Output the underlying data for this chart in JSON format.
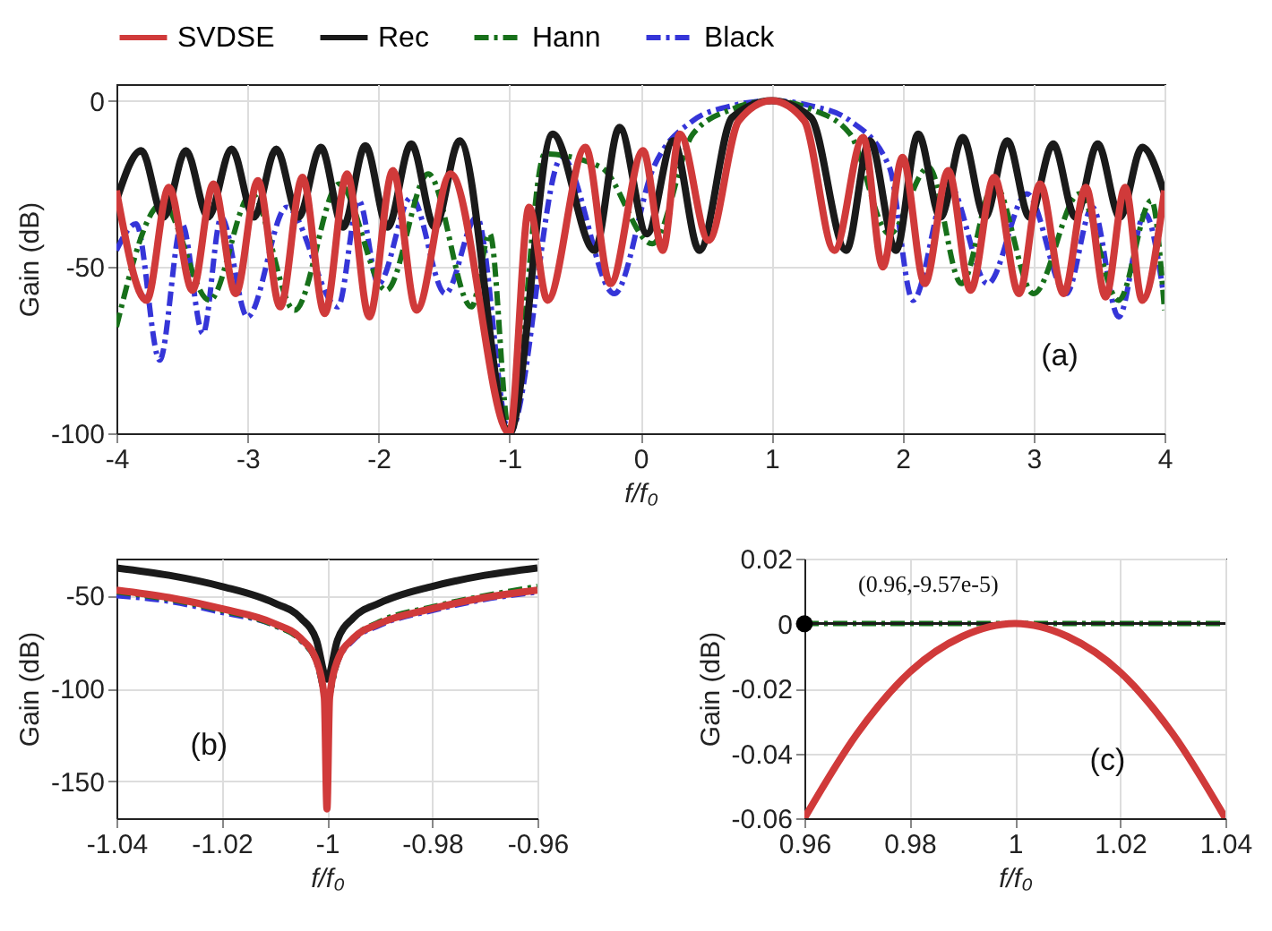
{
  "chart_data": [
    {
      "type": "line",
      "xlabel": "f/f₀",
      "ylabel": "Gain (dB)",
      "xlim": [
        -4,
        4
      ],
      "ylim": [
        -100,
        5
      ],
      "xticks": [
        -4,
        -3,
        -2,
        -1,
        0,
        1,
        2,
        3,
        4
      ],
      "yticks": [
        0,
        -50,
        -100
      ],
      "grid": true,
      "legend": "top",
      "annotations": [
        "(a)"
      ],
      "series": [
        {
          "name": "SVDSE",
          "color": "#d03a3a",
          "line_style": "solid",
          "x": [
            -4,
            -3.77,
            -3.6,
            -3.42,
            -3.26,
            -3.09,
            -2.92,
            -2.75,
            -2.58,
            -2.41,
            -2.24,
            -2.07,
            -1.89,
            -1.71,
            -1.45,
            -1.0,
            -0.85,
            -0.71,
            -0.42,
            -0.23,
            0.02,
            0.17,
            0.3,
            0.52,
            0.75,
            1.0,
            1.25,
            1.48,
            1.7,
            1.85,
            2.0,
            2.17,
            2.35,
            2.52,
            2.7,
            2.89,
            3.05,
            3.23,
            3.4,
            3.55,
            3.7,
            3.83,
            4
          ],
          "values": [
            -27,
            -60,
            -26,
            -57,
            -25,
            -58,
            -24,
            -62,
            -23,
            -64,
            -22,
            -65,
            -21,
            -63,
            -22,
            -100,
            -32,
            -60,
            -14,
            -55,
            -15,
            -45,
            -10,
            -42,
            -6,
            0,
            -6,
            -45,
            -11,
            -50,
            -17,
            -55,
            -21,
            -57,
            -23,
            -58,
            -25,
            -58,
            -26,
            -59,
            -26,
            -60,
            -27
          ]
        },
        {
          "name": "Rec",
          "color": "#1a1a1a",
          "line_style": "solid",
          "x": [
            -4,
            -3.81,
            -3.64,
            -3.47,
            -3.3,
            -3.12,
            -2.95,
            -2.78,
            -2.61,
            -2.44,
            -2.27,
            -2.1,
            -1.93,
            -1.75,
            -1.57,
            -1.38,
            -1.0,
            -0.67,
            -0.35,
            -0.16,
            0.05,
            0.25,
            0.45,
            0.7,
            1.0,
            1.3,
            1.57,
            1.75,
            1.95,
            2.12,
            2.29,
            2.46,
            2.63,
            2.8,
            2.97,
            3.15,
            3.32,
            3.49,
            3.66,
            3.83,
            4
          ],
          "values": [
            -30,
            -15,
            -35,
            -15,
            -35,
            -14.5,
            -35,
            -14.5,
            -35,
            -14,
            -38,
            -13.5,
            -38,
            -13,
            -38,
            -12,
            -100,
            -10,
            -45,
            -8,
            -40,
            -12,
            -45,
            -5,
            0,
            -5,
            -45,
            -12,
            -45,
            -10,
            -35,
            -11,
            -35,
            -12,
            -35,
            -13,
            -35,
            -13,
            -35,
            -14,
            -28
          ]
        },
        {
          "name": "Hann",
          "color": "#17701a",
          "line_style": "dashed",
          "x": [
            -4,
            -3.65,
            -3.29,
            -2.97,
            -2.64,
            -2.3,
            -1.94,
            -1.62,
            -1.29,
            -1.15,
            -1.0,
            -0.73,
            -0.3,
            0.09,
            0.4,
            0.7,
            1.0,
            1.3,
            1.6,
            1.9,
            2.2,
            2.45,
            2.7,
            3.0,
            3.35,
            3.65,
            3.9,
            4
          ],
          "values": [
            -68,
            -31,
            -60,
            -28,
            -63,
            -25,
            -57,
            -22,
            -62,
            -40,
            -100,
            -16,
            -20,
            -43,
            -10,
            -2.5,
            0,
            -2.5,
            -10,
            -40,
            -20,
            -55,
            -25,
            -58,
            -28,
            -60,
            -30,
            -63
          ]
        },
        {
          "name": "Black",
          "color": "#3535d8",
          "line_style": "dashed",
          "x": [
            -4,
            -3.85,
            -3.67,
            -3.5,
            -3.34,
            -3.2,
            -3.0,
            -2.7,
            -2.31,
            -2.15,
            -2.0,
            -1.75,
            -1.49,
            -1.25,
            -1.0,
            -0.6,
            -0.2,
            0.1,
            0.4,
            0.7,
            1.0,
            1.3,
            1.6,
            1.9,
            2.08,
            2.35,
            2.65,
            2.95,
            3.25,
            3.45,
            3.65,
            3.85,
            4
          ],
          "values": [
            -45,
            -37,
            -78,
            -37,
            -70,
            -35,
            -65,
            -32,
            -62,
            -30,
            -55,
            -29,
            -58,
            -35,
            -100,
            -17,
            -58,
            -20,
            -6,
            -1.5,
            0,
            -1.5,
            -6,
            -20,
            -60,
            -25,
            -55,
            -28,
            -58,
            -32,
            -65,
            -34,
            -60
          ]
        }
      ]
    },
    {
      "type": "line",
      "xlabel": "f/f₀",
      "ylabel": "Gain (dB)",
      "xlim": [
        -1.04,
        -0.96
      ],
      "ylim": [
        -170,
        -30
      ],
      "xticks": [
        -1.04,
        -1.02,
        -1,
        -0.98,
        -0.96
      ],
      "yticks": [
        -50,
        -100,
        -150
      ],
      "grid": true,
      "annotations": [
        "(b)"
      ],
      "series": [
        {
          "color": "#d03a3a",
          "line_style": "solid",
          "x": [
            -1.04,
            -1.03,
            -1.02,
            -1.01,
            -1.005,
            -1.002,
            -1.0005,
            -1.0,
            -0.9995,
            -0.998,
            -0.995,
            -0.99,
            -0.98,
            -0.97,
            -0.96
          ],
          "values": [
            -47,
            -51,
            -57,
            -65,
            -73,
            -85,
            -105,
            -165,
            -105,
            -85,
            -73,
            -65,
            -57,
            -51,
            -47
          ]
        },
        {
          "color": "#1a1a1a",
          "line_style": "solid",
          "x": [
            -1.04,
            -1.03,
            -1.02,
            -1.01,
            -1.005,
            -1.002,
            -1.0,
            -0.998,
            -0.995,
            -0.99,
            -0.98,
            -0.97,
            -0.96
          ],
          "values": [
            -35,
            -39,
            -45,
            -54,
            -62,
            -74,
            -95,
            -74,
            -62,
            -54,
            -45,
            -39,
            -35
          ]
        },
        {
          "color": "#17701a",
          "line_style": "dashed",
          "x": [
            -1.04,
            -1.03,
            -1.02,
            -1.01,
            -1.005,
            -1.002,
            -1.0005,
            -1.0,
            -0.9995,
            -0.998,
            -0.995,
            -0.99,
            -0.98,
            -0.97,
            -0.96
          ],
          "values": [
            -48,
            -52,
            -58,
            -66,
            -74,
            -86,
            -105,
            null,
            -105,
            -86,
            -73,
            -64,
            -56,
            -50,
            -45
          ]
        },
        {
          "color": "#3535d8",
          "line_style": "dashed",
          "x": [
            -1.04,
            -1.03,
            -1.02,
            -1.01,
            -1.005,
            -1.002,
            -1.0005,
            -1.0,
            -0.9995,
            -0.998,
            -0.995,
            -0.99,
            -0.98,
            -0.97,
            -0.96
          ],
          "values": [
            -50,
            -53,
            -59,
            -66,
            -74,
            -86,
            -105,
            null,
            -105,
            -86,
            -74,
            -66,
            -58,
            -52,
            -48
          ]
        }
      ]
    },
    {
      "type": "line",
      "xlabel": "f/f₀",
      "ylabel": "Gain (dB)",
      "xlim": [
        0.96,
        1.04
      ],
      "ylim": [
        -0.06,
        0.02
      ],
      "xticks": [
        0.96,
        0.98,
        1,
        1.02,
        1.04
      ],
      "yticks": [
        0.02,
        0,
        -0.02,
        -0.04,
        -0.06
      ],
      "grid": true,
      "annotations": [
        "(c)",
        {
          "text": "(0.96,-9.57e-5)",
          "x": 0.96,
          "y": -9.57e-05
        }
      ],
      "series": [
        {
          "color": "#d03a3a",
          "line_style": "solid",
          "x": [
            0.96,
            0.97,
            0.98,
            0.99,
            1.0,
            1.01,
            1.02,
            1.03,
            1.04
          ],
          "values": [
            -0.06,
            -0.034,
            -0.015,
            -0.004,
            0,
            -0.004,
            -0.015,
            -0.034,
            -0.06
          ]
        },
        {
          "color": "#1a1a1a",
          "line_style": "solid",
          "x": [
            0.96,
            1.04
          ],
          "values": [
            0,
            0
          ]
        },
        {
          "color": "#17701a",
          "line_style": "dashed",
          "x": [
            0.96,
            1.04
          ],
          "values": [
            0,
            0
          ]
        }
      ]
    }
  ]
}
